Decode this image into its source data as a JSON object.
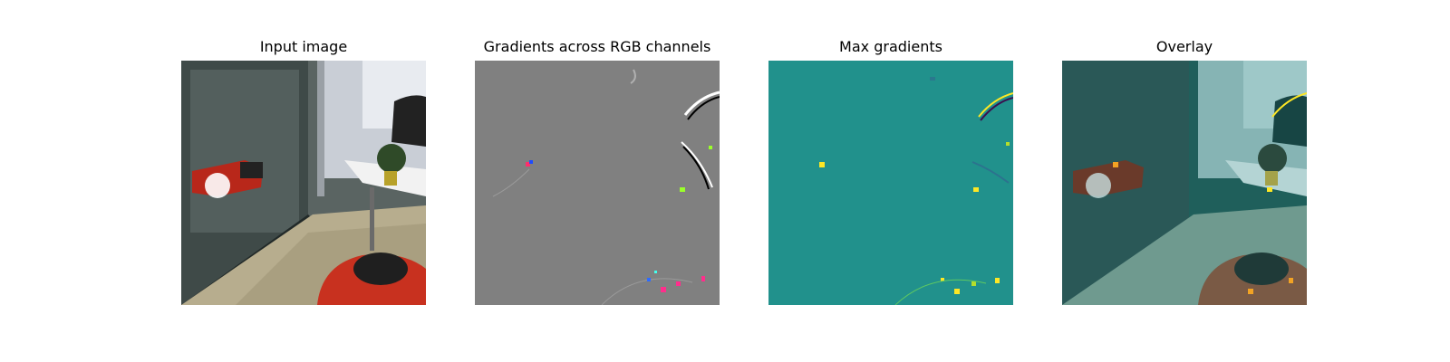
{
  "panels": [
    {
      "id": "input",
      "title": "Input image"
    },
    {
      "id": "gradients",
      "title": "Gradients across RGB channels"
    },
    {
      "id": "max",
      "title": "Max gradients"
    },
    {
      "id": "overlay",
      "title": "Overlay"
    }
  ],
  "colors": {
    "background": "#ffffff",
    "gradient_gray": "#808080",
    "viridis_teal": "#21918c",
    "viridis_yellow": "#fde725",
    "robot_red": "#c8311f"
  }
}
